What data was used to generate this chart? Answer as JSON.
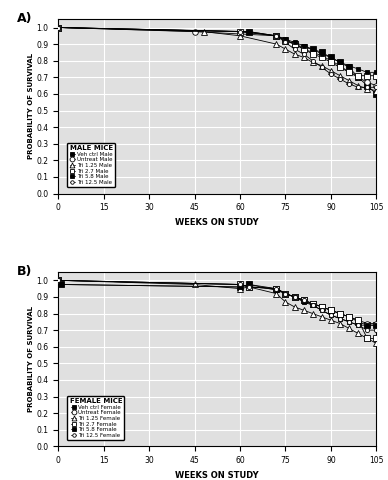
{
  "title_A": "A)",
  "title_B": "B)",
  "xlabel": "WEEKS ON STUDY",
  "ylabel": "PROBABILITY OF SURVIVAL",
  "xlim": [
    0,
    105
  ],
  "ylim": [
    0.0,
    1.05
  ],
  "xticks": [
    0,
    15,
    30,
    45,
    60,
    75,
    90,
    105
  ],
  "yticks": [
    0.0,
    0.1,
    0.2,
    0.3,
    0.4,
    0.5,
    0.6,
    0.7,
    0.8,
    0.9,
    1.0
  ],
  "male_series": [
    {
      "label": "Veh ctrl Male",
      "weeks": [
        0,
        63,
        72,
        75,
        78,
        81,
        84,
        87,
        90,
        93,
        96,
        99,
        102,
        105
      ],
      "surv": [
        1.0,
        0.975,
        0.95,
        0.925,
        0.9,
        0.88,
        0.87,
        0.85,
        0.82,
        0.79,
        0.76,
        0.7,
        0.65,
        0.6
      ]
    },
    {
      "label": "Untreat Male",
      "weeks": [
        0,
        45,
        72,
        75,
        78,
        81,
        84,
        87,
        90,
        93,
        96,
        99,
        102,
        105
      ],
      "surv": [
        1.0,
        0.975,
        0.95,
        0.925,
        0.9,
        0.87,
        0.85,
        0.83,
        0.8,
        0.77,
        0.73,
        0.7,
        0.67,
        0.65
      ]
    },
    {
      "label": "Tri 1.25 Male",
      "weeks": [
        0,
        48,
        60,
        72,
        75,
        78,
        81,
        84,
        87,
        90,
        93,
        96,
        99,
        102,
        105
      ],
      "surv": [
        1.0,
        0.975,
        0.95,
        0.9,
        0.87,
        0.84,
        0.82,
        0.79,
        0.77,
        0.74,
        0.71,
        0.68,
        0.65,
        0.63,
        0.62
      ]
    },
    {
      "label": "Tri 2.7 Male",
      "weeks": [
        0,
        60,
        72,
        75,
        78,
        81,
        84,
        87,
        90,
        93,
        96,
        99,
        102,
        105
      ],
      "surv": [
        1.0,
        0.975,
        0.95,
        0.92,
        0.9,
        0.87,
        0.84,
        0.82,
        0.79,
        0.76,
        0.73,
        0.71,
        0.71,
        0.71
      ]
    },
    {
      "label": "Tri 5.8 Male",
      "weeks": [
        0,
        63,
        72,
        75,
        78,
        81,
        84,
        87,
        90,
        93,
        96,
        99,
        102,
        105
      ],
      "surv": [
        1.0,
        0.975,
        0.95,
        0.93,
        0.91,
        0.89,
        0.87,
        0.84,
        0.82,
        0.79,
        0.77,
        0.75,
        0.73,
        0.73
      ]
    },
    {
      "label": "Tri 12.5 Male",
      "weeks": [
        0,
        60,
        72,
        75,
        78,
        81,
        84,
        87,
        90,
        93,
        96,
        99,
        102,
        105
      ],
      "surv": [
        1.0,
        0.975,
        0.95,
        0.91,
        0.87,
        0.84,
        0.8,
        0.76,
        0.72,
        0.69,
        0.66,
        0.64,
        0.64,
        0.64
      ]
    }
  ],
  "female_series": [
    {
      "label": "Veh ctrl Female",
      "weeks": [
        0,
        1,
        60,
        63,
        72,
        75,
        78,
        81,
        84,
        87,
        90,
        93,
        96,
        99,
        102,
        105
      ],
      "surv": [
        1.0,
        0.975,
        0.96,
        0.975,
        0.95,
        0.92,
        0.9,
        0.88,
        0.86,
        0.84,
        0.82,
        0.8,
        0.78,
        0.75,
        0.73,
        0.73
      ]
    },
    {
      "label": "Untreat Female",
      "weeks": [
        0,
        60,
        63,
        72,
        75,
        78,
        81,
        84,
        87,
        90,
        93,
        96,
        99,
        102,
        105
      ],
      "surv": [
        1.0,
        0.975,
        0.96,
        0.95,
        0.92,
        0.9,
        0.88,
        0.86,
        0.84,
        0.82,
        0.8,
        0.78,
        0.76,
        0.74,
        0.74
      ]
    },
    {
      "label": "Tri 1.25 Female",
      "weeks": [
        0,
        45,
        60,
        63,
        72,
        75,
        78,
        81,
        84,
        87,
        90,
        93,
        96,
        99,
        102,
        105
      ],
      "surv": [
        1.0,
        0.975,
        0.95,
        0.96,
        0.92,
        0.87,
        0.84,
        0.82,
        0.8,
        0.78,
        0.76,
        0.74,
        0.71,
        0.68,
        0.65,
        0.62
      ]
    },
    {
      "label": "Tri 2.7 Female",
      "weeks": [
        0,
        60,
        63,
        72,
        75,
        78,
        81,
        84,
        87,
        90,
        93,
        96,
        99,
        102,
        105
      ],
      "surv": [
        1.0,
        0.975,
        0.96,
        0.95,
        0.92,
        0.9,
        0.88,
        0.86,
        0.84,
        0.82,
        0.8,
        0.78,
        0.76,
        0.65,
        0.65
      ]
    },
    {
      "label": "Tri 5.8 Female",
      "weeks": [
        0,
        1,
        60,
        63,
        72,
        75,
        78,
        81,
        84,
        87,
        90,
        93,
        96,
        99,
        102,
        105
      ],
      "surv": [
        1.0,
        0.975,
        0.96,
        0.975,
        0.94,
        0.92,
        0.9,
        0.87,
        0.85,
        0.82,
        0.79,
        0.77,
        0.75,
        0.73,
        0.73,
        0.73
      ]
    },
    {
      "label": "Tri 12.5 Female",
      "weeks": [
        0,
        60,
        63,
        72,
        75,
        78,
        81,
        84,
        87,
        90,
        93,
        96,
        99,
        102,
        105
      ],
      "surv": [
        1.0,
        0.975,
        0.96,
        0.95,
        0.92,
        0.9,
        0.88,
        0.85,
        0.82,
        0.79,
        0.77,
        0.75,
        0.73,
        0.7,
        0.7
      ]
    }
  ],
  "legend_male_title": "MALE MICE",
  "legend_female_title": "FEMALE MICE",
  "legend_labels_male": [
    "Veh ctrl Male",
    "Untreat Male",
    "Tri 1.25 Male",
    "Tri 2.7 Male",
    "Tri 5.8 Male",
    "Tri 12.5 Male"
  ],
  "legend_labels_female": [
    "Veh ctrl Female",
    "Untreat Female",
    "Tri 1.25 Female",
    "Tri 2.7 Female",
    "Tri 5.8 Female",
    "Tri 12.5 Female"
  ],
  "bg_color": "#e0e0e0"
}
